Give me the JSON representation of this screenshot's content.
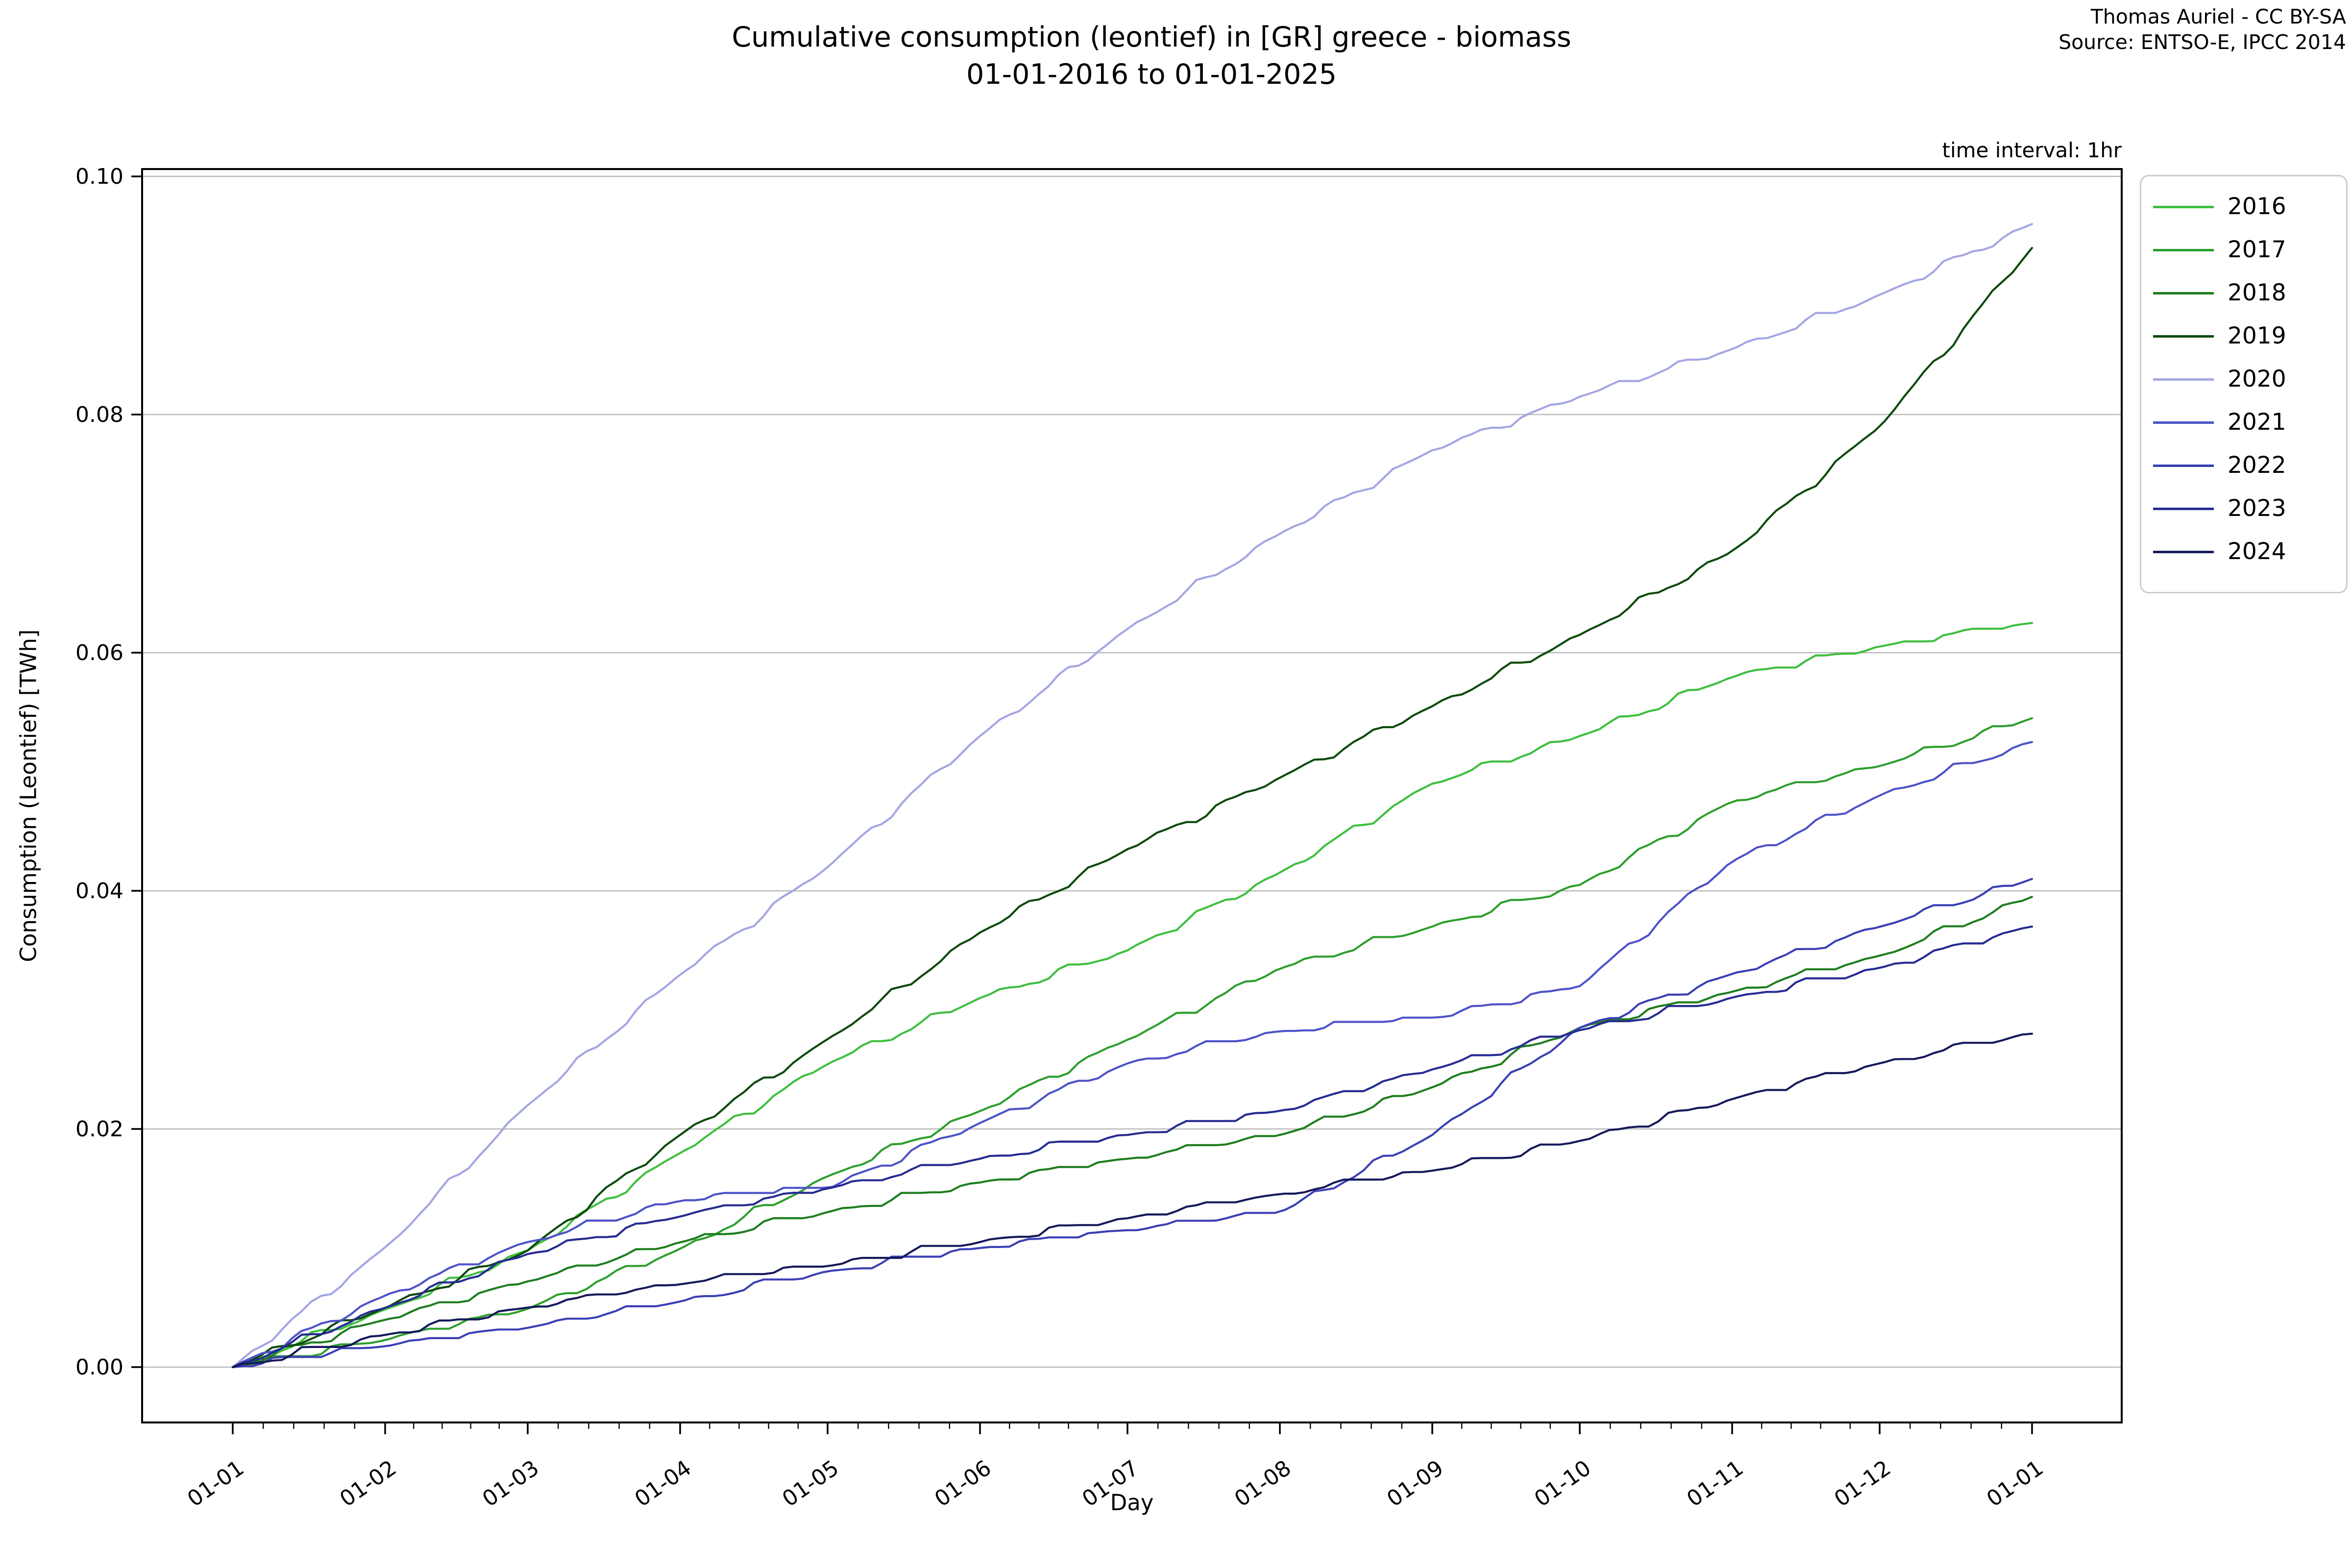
{
  "header": {
    "title_line1": "Cumulative consumption (leontief) in [GR] greece - biomass",
    "title_line2": "01-01-2016 to 01-01-2025",
    "credit_line1": "Thomas Auriel - CC BY-SA",
    "credit_line2": "Source: ENTSO-E, IPCC 2014",
    "interval_note": "time interval: 1hr"
  },
  "chart_data": {
    "type": "line",
    "title": "Cumulative consumption (leontief) in [GR] greece - biomass 01-01-2016 to 01-01-2025",
    "xlabel": "Day",
    "ylabel": "Consumption (Leontief) [TWh]",
    "grid": "horizontal",
    "legend_position": "upper-right-outside",
    "x_tick_labels": [
      "01-01",
      "01-02",
      "01-03",
      "01-04",
      "01-05",
      "01-06",
      "01-07",
      "01-08",
      "01-09",
      "01-10",
      "01-11",
      "01-12",
      "01-01"
    ],
    "x": [
      0,
      31,
      60,
      91,
      121,
      152,
      182,
      213,
      244,
      274,
      305,
      335,
      366
    ],
    "y_ticks": [
      0.0,
      0.02,
      0.04,
      0.06,
      0.08,
      0.1
    ],
    "y_tick_labels": [
      "0.00",
      "0.02",
      "0.04",
      "0.06",
      "0.08",
      "0.10"
    ],
    "ylim": [
      -0.0047,
      0.1006
    ],
    "xlim_days": [
      -18.5,
      388.6
    ],
    "series": [
      {
        "name": "2016",
        "color": "#3fbf3f",
        "values": [
          0,
          0.0048,
          0.0098,
          0.018,
          0.0255,
          0.031,
          0.035,
          0.0415,
          0.049,
          0.053,
          0.058,
          0.0605,
          0.0625
        ]
      },
      {
        "name": "2017",
        "color": "#2e9e2e",
        "values": [
          0,
          0.0023,
          0.0049,
          0.0099,
          0.016,
          0.0215,
          0.0275,
          0.0335,
          0.037,
          0.0405,
          0.0475,
          0.0505,
          0.0545
        ]
      },
      {
        "name": "2018",
        "color": "#1e7d1e",
        "values": [
          0,
          0.004,
          0.0072,
          0.0105,
          0.013,
          0.0155,
          0.0175,
          0.0195,
          0.0235,
          0.0285,
          0.0315,
          0.0345,
          0.0395
        ]
      },
      {
        "name": "2019",
        "color": "#0c4a0c",
        "values": [
          0,
          0.005,
          0.0098,
          0.0195,
          0.0275,
          0.0365,
          0.0435,
          0.0495,
          0.0555,
          0.0615,
          0.0685,
          0.079,
          0.094
        ]
      },
      {
        "name": "2020",
        "color": "#a3a6e3",
        "values": [
          0,
          0.01,
          0.022,
          0.033,
          0.042,
          0.053,
          0.062,
          0.07,
          0.077,
          0.0815,
          0.0855,
          0.09,
          0.096
        ]
      },
      {
        "name": "2021",
        "color": "#4d52c8",
        "values": [
          0,
          0.006,
          0.0105,
          0.014,
          0.015,
          0.0205,
          0.0255,
          0.0282,
          0.0293,
          0.032,
          0.0425,
          0.048,
          0.0525
        ]
      },
      {
        "name": "2022",
        "color": "#3a3fb5",
        "values": [
          0,
          0.0018,
          0.0033,
          0.0055,
          0.008,
          0.01,
          0.0115,
          0.013,
          0.0195,
          0.0285,
          0.033,
          0.037,
          0.041
        ]
      },
      {
        "name": "2023",
        "color": "#252b92",
        "values": [
          0,
          0.005,
          0.0095,
          0.0127,
          0.015,
          0.0175,
          0.0195,
          0.0215,
          0.025,
          0.0283,
          0.031,
          0.0335,
          0.037
        ]
      },
      {
        "name": "2024",
        "color": "#15195a",
        "values": [
          0,
          0.0027,
          0.005,
          0.007,
          0.0085,
          0.0105,
          0.0125,
          0.0145,
          0.0165,
          0.019,
          0.0225,
          0.0255,
          0.028
        ]
      }
    ]
  }
}
